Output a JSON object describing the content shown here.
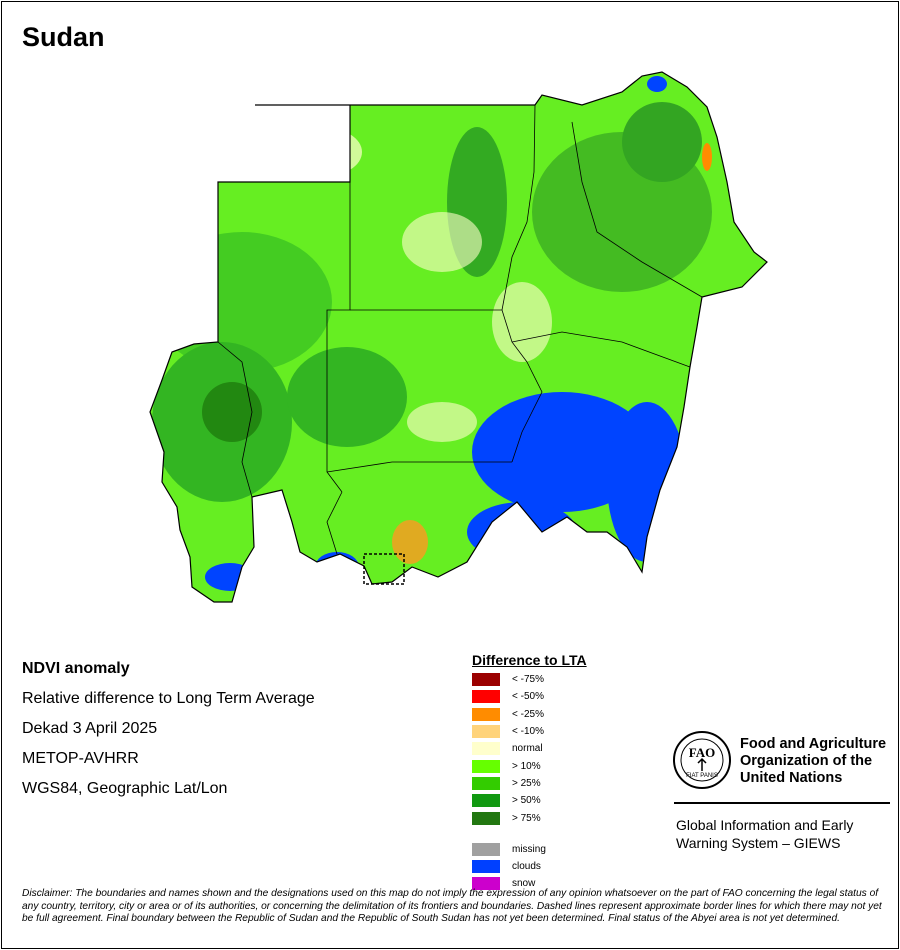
{
  "map_title": "Sudan",
  "map": {
    "subject": "NDVI anomaly map of Sudan",
    "dominant_classes": [
      "> 10%",
      "> 25%",
      "> 50%",
      "normal",
      "clouds"
    ]
  },
  "metadata": {
    "title": "NDVI anomaly",
    "subtitle": "Relative difference to Long Term Average",
    "period": "Dekad 3 April 2025",
    "sensor": "METOP-AVHRR",
    "projection": "WGS84, Geographic Lat/Lon"
  },
  "legend": {
    "title": "Difference to LTA",
    "classes": [
      {
        "label": "< -75%",
        "color": "#9b0000"
      },
      {
        "label": "< -50%",
        "color": "#ff0000"
      },
      {
        "label": "< -25%",
        "color": "#ff8c00"
      },
      {
        "label": "< -10%",
        "color": "#ffd37a"
      },
      {
        "label": "normal",
        "color": "#ffffcc"
      },
      {
        "label": "> 10%",
        "color": "#66ff00"
      },
      {
        "label": "> 25%",
        "color": "#33cc00"
      },
      {
        "label": "> 50%",
        "color": "#119911"
      },
      {
        "label": "> 75%",
        "color": "#227711"
      }
    ],
    "other": [
      {
        "label": "missing",
        "color": "#a0a0a0"
      },
      {
        "label": "clouds",
        "color": "#0040ff"
      },
      {
        "label": "snow",
        "color": "#cc00cc"
      }
    ]
  },
  "organization": {
    "name": "Food and Agriculture Organization of the United Nations",
    "logo_letters": "FAO",
    "logo_motto": "FIAT PANIS",
    "system": "Global Information and Early Warning System – GIEWS"
  },
  "disclaimer": "Disclaimer: The boundaries and names shown and the designations used on this map do not imply the expression of any opinion whatsoever on the part of FAO concerning the legal status of any country, territory, city or area or of its authorities, or concerning the delimitation of its frontiers and boundaries. Dashed lines represent approximate border lines for which there may not yet be full agreement.  Final boundary between the Republic of Sudan and the Republic of South Sudan has not yet been determined. Final status of the Abyei area is not yet determined."
}
